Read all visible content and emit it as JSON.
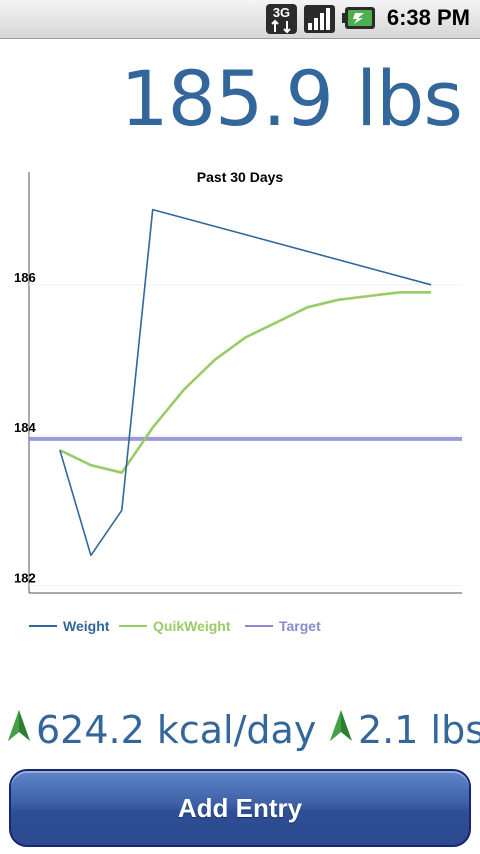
{
  "status_bar": {
    "network": "3G",
    "time": "6:38 PM",
    "icons": [
      "3g-data-icon",
      "signal-strength-icon",
      "battery-charging-icon"
    ]
  },
  "current_weight": "185.9 lbs",
  "chart_data": {
    "type": "line",
    "title": "Past 30 Days",
    "xlabel": "",
    "ylabel": "",
    "ylim": [
      181.9,
      187.5
    ],
    "yticks": [
      182,
      184,
      186
    ],
    "grid": false,
    "legend_placement": "bottom-left",
    "x": [
      1,
      2,
      3,
      4,
      5,
      6,
      7,
      8,
      9,
      10,
      11,
      12,
      13
    ],
    "series": [
      {
        "name": "Weight",
        "color": "#33669a",
        "x": [
          1,
          2,
          3,
          4,
          13
        ],
        "values": [
          183.8,
          182.4,
          183.0,
          187.0,
          186.0
        ]
      },
      {
        "name": "QuikWeight",
        "color": "#99cc66",
        "x": [
          1,
          2,
          3,
          4,
          5,
          6,
          7,
          8,
          9,
          10,
          11,
          12,
          13
        ],
        "values": [
          183.8,
          183.6,
          183.5,
          184.1,
          184.6,
          185.0,
          185.3,
          185.5,
          185.7,
          185.8,
          185.85,
          185.9,
          185.9
        ]
      },
      {
        "name": "Target",
        "color": "#8a8acc",
        "x": [
          0,
          14
        ],
        "values": [
          183.95,
          183.95
        ]
      }
    ]
  },
  "stats": {
    "calories": "624.2 kcal/day",
    "change": "2.1 lbs",
    "arrow_icon": "up-arrow-icon",
    "arrow_color": "#2e7d32"
  },
  "button": {
    "add_entry_label": "Add Entry"
  }
}
